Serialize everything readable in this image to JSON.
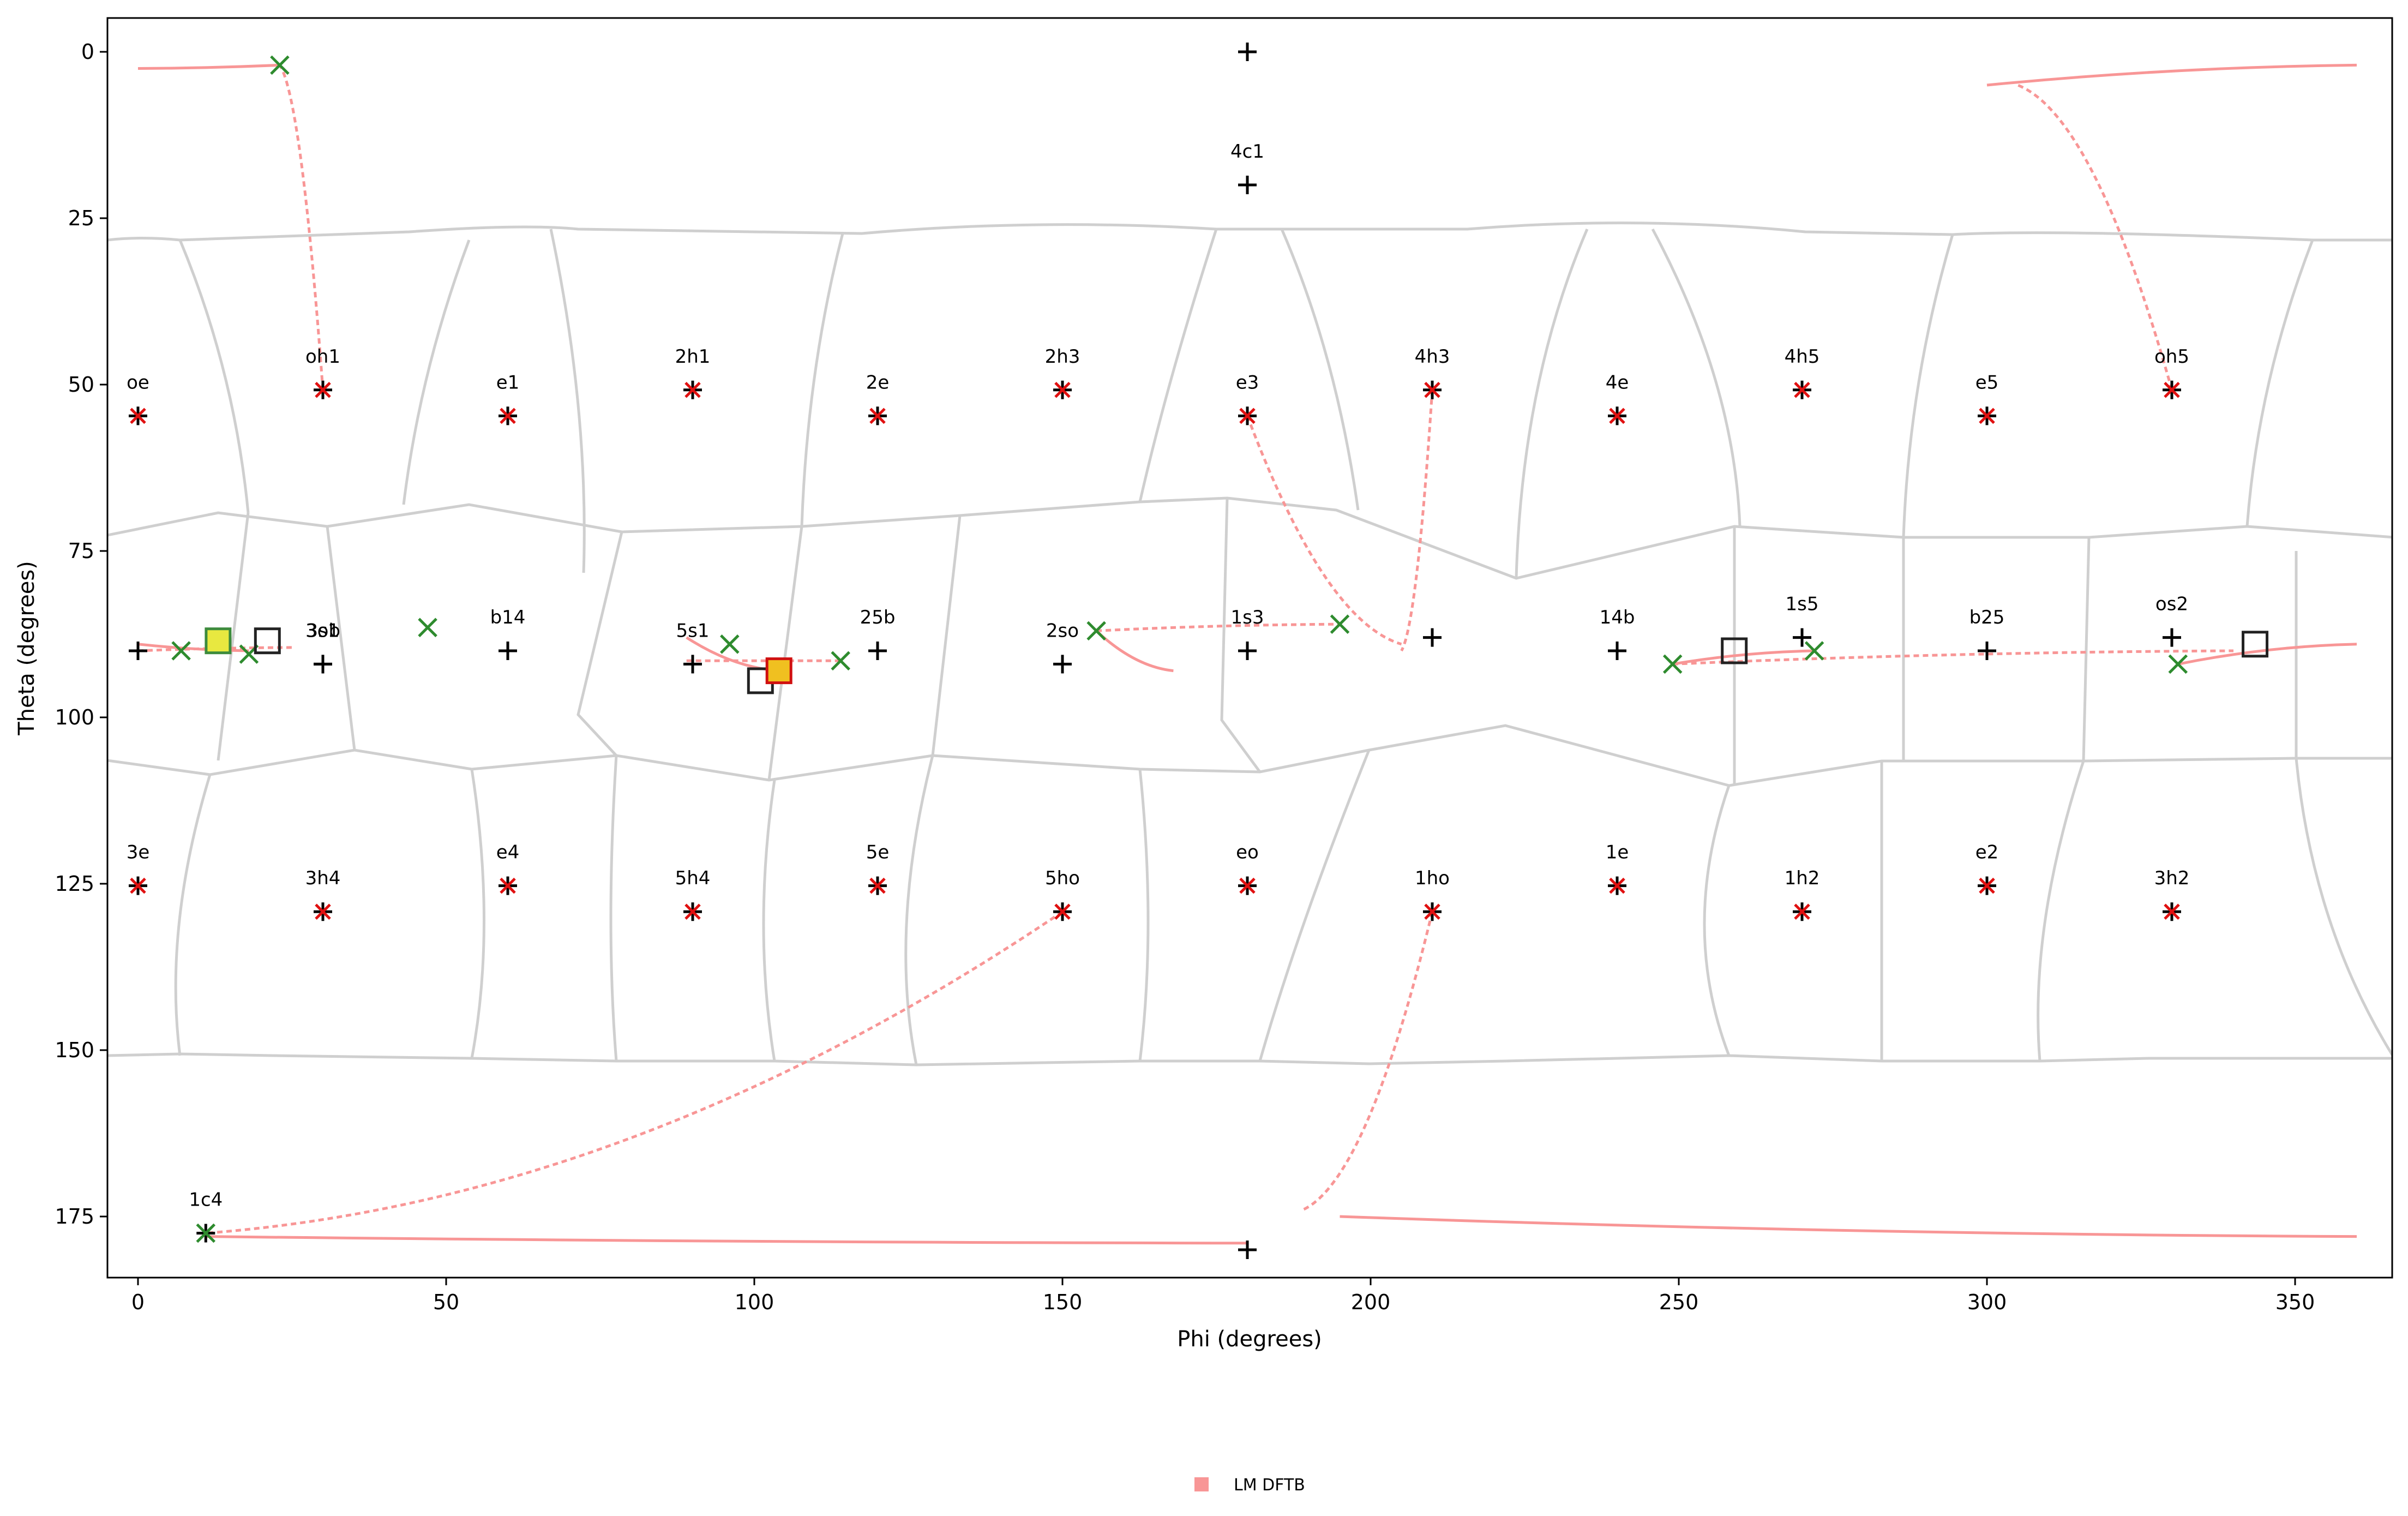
{
  "chart_data": {
    "type": "scatter",
    "xlabel": "Phi (degrees)",
    "ylabel": "Theta (degrees)",
    "xlim": [
      -5,
      365
    ],
    "ylim": [
      185,
      -5
    ],
    "x_ticks": [
      0,
      50,
      100,
      150,
      200,
      250,
      300,
      350
    ],
    "y_ticks": [
      0,
      25,
      50,
      75,
      100,
      125,
      150,
      175
    ],
    "legend": {
      "entries": [
        {
          "label": "LM DFTB",
          "color": "#f89696"
        }
      ],
      "placement": "bottom-center"
    },
    "colors": {
      "path": "#f89696",
      "grid": "#cfcfcf",
      "reference_marker": "#000000",
      "local_minimum": "#2e8b2e",
      "labelled_point": "#e01010"
    },
    "labelled_points": [
      {
        "label": "",
        "phi": 180,
        "theta": 0
      },
      {
        "label": "4c1",
        "phi": 180,
        "theta": 20
      },
      {
        "label": "oe",
        "phi": 0,
        "theta": 54.7
      },
      {
        "label": "oh1",
        "phi": 30,
        "theta": 50.8
      },
      {
        "label": "e1",
        "phi": 60,
        "theta": 54.7
      },
      {
        "label": "2h1",
        "phi": 90,
        "theta": 50.8
      },
      {
        "label": "2e",
        "phi": 120,
        "theta": 54.7
      },
      {
        "label": "2h3",
        "phi": 150,
        "theta": 50.8
      },
      {
        "label": "e3",
        "phi": 180,
        "theta": 54.7
      },
      {
        "label": "4h3",
        "phi": 210,
        "theta": 50.8
      },
      {
        "label": "4e",
        "phi": 240,
        "theta": 54.7
      },
      {
        "label": "4h5",
        "phi": 270,
        "theta": 50.8
      },
      {
        "label": "e5",
        "phi": 300,
        "theta": 54.7
      },
      {
        "label": "oh5",
        "phi": 330,
        "theta": 50.8
      },
      {
        "label": "",
        "phi": 0,
        "theta": 90
      },
      {
        "label": "3ob",
        "phi": 30,
        "theta": 92
      },
      {
        "label": "3s1",
        "phi": 30,
        "theta": 92
      },
      {
        "label": "b14",
        "phi": 60,
        "theta": 90
      },
      {
        "label": "5s1",
        "phi": 90,
        "theta": 92
      },
      {
        "label": "25b",
        "phi": 120,
        "theta": 90
      },
      {
        "label": "2so",
        "phi": 150,
        "theta": 92
      },
      {
        "label": "1s3",
        "phi": 180,
        "theta": 90
      },
      {
        "label": "",
        "phi": 210,
        "theta": 88
      },
      {
        "label": "14b",
        "phi": 240,
        "theta": 90
      },
      {
        "label": "1s5",
        "phi": 270,
        "theta": 88
      },
      {
        "label": "b25",
        "phi": 300,
        "theta": 90
      },
      {
        "label": "os2",
        "phi": 330,
        "theta": 88
      },
      {
        "label": "3e",
        "phi": 0,
        "theta": 125.3
      },
      {
        "label": "3h4",
        "phi": 30,
        "theta": 129.2
      },
      {
        "label": "e4",
        "phi": 60,
        "theta": 125.3
      },
      {
        "label": "5h4",
        "phi": 90,
        "theta": 129.2
      },
      {
        "label": "5e",
        "phi": 120,
        "theta": 125.3
      },
      {
        "label": "5ho",
        "phi": 150,
        "theta": 129.2
      },
      {
        "label": "eo",
        "phi": 180,
        "theta": 125.3
      },
      {
        "label": "1ho",
        "phi": 210,
        "theta": 129.2
      },
      {
        "label": "1e",
        "phi": 240,
        "theta": 125.3
      },
      {
        "label": "1h2",
        "phi": 270,
        "theta": 129.2
      },
      {
        "label": "e2",
        "phi": 300,
        "theta": 125.3
      },
      {
        "label": "3h2",
        "phi": 330,
        "theta": 129.2
      },
      {
        "label": "",
        "phi": 180,
        "theta": 180
      },
      {
        "label": "1c4",
        "phi": 11,
        "theta": 177.5
      }
    ],
    "local_minima": [
      {
        "phi": 23,
        "theta": 2
      },
      {
        "phi": 7,
        "theta": 90
      },
      {
        "phi": 18,
        "theta": 90.5
      },
      {
        "phi": 47,
        "theta": 86.5
      },
      {
        "phi": 96,
        "theta": 89
      },
      {
        "phi": 114,
        "theta": 91.5
      },
      {
        "phi": 155.5,
        "theta": 87
      },
      {
        "phi": 195,
        "theta": 86
      },
      {
        "phi": 249,
        "theta": 92
      },
      {
        "phi": 272,
        "theta": 90
      },
      {
        "phi": 331,
        "theta": 92
      },
      {
        "phi": 11,
        "theta": 177.5
      }
    ],
    "red_x_points": [
      {
        "phi": 0,
        "theta": 54.7
      },
      {
        "phi": 30,
        "theta": 50.8
      },
      {
        "phi": 60,
        "theta": 54.7
      },
      {
        "phi": 90,
        "theta": 50.8
      },
      {
        "phi": 120,
        "theta": 54.7
      },
      {
        "phi": 150,
        "theta": 50.8
      },
      {
        "phi": 180,
        "theta": 54.7
      },
      {
        "phi": 210,
        "theta": 50.8
      },
      {
        "phi": 240,
        "theta": 54.7
      },
      {
        "phi": 270,
        "theta": 50.8
      },
      {
        "phi": 300,
        "theta": 54.7
      },
      {
        "phi": 330,
        "theta": 50.8
      },
      {
        "phi": 0,
        "theta": 125.3
      },
      {
        "phi": 30,
        "theta": 129.2
      },
      {
        "phi": 60,
        "theta": 125.3
      },
      {
        "phi": 90,
        "theta": 129.2
      },
      {
        "phi": 120,
        "theta": 125.3
      },
      {
        "phi": 150,
        "theta": 129.2
      },
      {
        "phi": 180,
        "theta": 125.3
      },
      {
        "phi": 210,
        "theta": 129.2
      },
      {
        "phi": 240,
        "theta": 125.3
      },
      {
        "phi": 270,
        "theta": 129.2
      },
      {
        "phi": 300,
        "theta": 125.3
      },
      {
        "phi": 330,
        "theta": 129.2
      }
    ],
    "boxed_points": [
      {
        "phi": 13,
        "theta": 88.5,
        "style": "green-yellow"
      },
      {
        "phi": 21,
        "theta": 88.5,
        "style": "plain"
      },
      {
        "phi": 101,
        "theta": 94.5,
        "style": "plain"
      },
      {
        "phi": 104,
        "theta": 93,
        "style": "red-yellow"
      },
      {
        "phi": 259,
        "theta": 90,
        "style": "plain"
      },
      {
        "phi": 343.5,
        "theta": 89,
        "style": "plain"
      }
    ],
    "pathways": [
      {
        "from": [
          23,
          2
        ],
        "to": [
          0,
          2.5
        ],
        "style": "solid"
      },
      {
        "from": [
          30,
          50.8
        ],
        "to": [
          23,
          2
        ],
        "style": "dashed"
      },
      {
        "from": [
          0,
          89
        ],
        "to": [
          18,
          90
        ],
        "style": "solid"
      },
      {
        "from": [
          0,
          90
        ],
        "to": [
          25,
          89.5
        ],
        "style": "dashed"
      },
      {
        "from": [
          89,
          88
        ],
        "to": [
          104,
          93
        ],
        "style": "solid"
      },
      {
        "from": [
          89,
          91.5
        ],
        "to": [
          114,
          91.5
        ],
        "style": "dashed"
      },
      {
        "from": [
          155.5,
          87
        ],
        "to": [
          168,
          93
        ],
        "style": "solid"
      },
      {
        "from": [
          155.5,
          87
        ],
        "to": [
          195,
          86
        ],
        "style": "dashed"
      },
      {
        "from": [
          180,
          54.7
        ],
        "to": [
          205,
          89
        ],
        "style": "dashed"
      },
      {
        "from": [
          210,
          50.8
        ],
        "to": [
          205,
          90
        ],
        "style": "dashed"
      },
      {
        "from": [
          249,
          92
        ],
        "to": [
          272,
          90
        ],
        "style": "solid"
      },
      {
        "from": [
          249,
          92
        ],
        "to": [
          340,
          90
        ],
        "style": "dashed"
      },
      {
        "from": [
          331,
          92
        ],
        "to": [
          360,
          89
        ],
        "style": "solid"
      },
      {
        "from": [
          330,
          50.8
        ],
        "to": [
          305,
          5
        ],
        "style": "dashed"
      },
      {
        "from": [
          300,
          5
        ],
        "to": [
          360,
          2
        ],
        "style": "solid"
      },
      {
        "from": [
          150,
          129.2
        ],
        "to": [
          11,
          177.5
        ],
        "style": "dashed"
      },
      {
        "from": [
          11,
          178
        ],
        "to": [
          180,
          179
        ],
        "style": "solid"
      },
      {
        "from": [
          210,
          129.2
        ],
        "to": [
          189,
          174
        ],
        "style": "dashed"
      },
      {
        "from": [
          195,
          175
        ],
        "to": [
          360,
          178
        ],
        "style": "solid"
      }
    ]
  }
}
